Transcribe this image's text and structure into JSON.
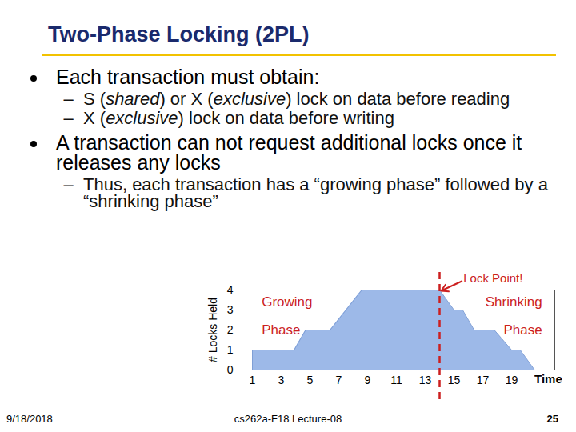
{
  "header": {
    "title": "Two-Phase Locking (2PL)"
  },
  "bullets": [
    {
      "segments": [
        {
          "text": "Each transaction must obtain:"
        }
      ],
      "sub": [
        [
          {
            "text": "S ("
          },
          {
            "text": "shared",
            "italic": true
          },
          {
            "text": ") or X ("
          },
          {
            "text": "exclusive",
            "italic": true
          },
          {
            "text": ") lock on data before reading"
          }
        ],
        [
          {
            "text": "X ("
          },
          {
            "text": "exclusive",
            "italic": true
          },
          {
            "text": ") lock on data before writing"
          }
        ]
      ]
    },
    {
      "segments": [
        {
          "text": "A transaction can not request additional locks once it releases any locks"
        }
      ],
      "sub": [
        [
          {
            "text": "Thus, each transaction has a “growing phase” followed by a “shrinking phase”"
          }
        ]
      ]
    }
  ],
  "chart_data": {
    "type": "area",
    "x_label": "Time",
    "y_label": "# Locks Held",
    "x": [
      1,
      1,
      3.9,
      4.7,
      6.4,
      8.6,
      14,
      15,
      15.6,
      16.4,
      17.8,
      19,
      19.6,
      20.6
    ],
    "values": [
      0,
      1,
      1,
      2,
      2,
      4,
      4,
      3,
      3,
      2,
      2,
      1,
      1,
      0
    ],
    "color": "#9db9e8",
    "xlim": [
      0,
      22
    ],
    "ylim": [
      0,
      4
    ],
    "xticks": [
      1,
      3,
      5,
      7,
      9,
      11,
      13,
      15,
      17,
      19
    ],
    "yticks": [
      0,
      1,
      2,
      3,
      4
    ],
    "grid": false,
    "annotations": {
      "growing": [
        "Growing",
        "Phase"
      ],
      "shrinking": [
        "Shrinking",
        "Phase"
      ],
      "lock_point": {
        "x": 14,
        "label": "Lock Point!"
      }
    }
  },
  "footer": {
    "date": "9/18/2018",
    "course": "cs262a-F18 Lecture-08",
    "page": "25"
  }
}
